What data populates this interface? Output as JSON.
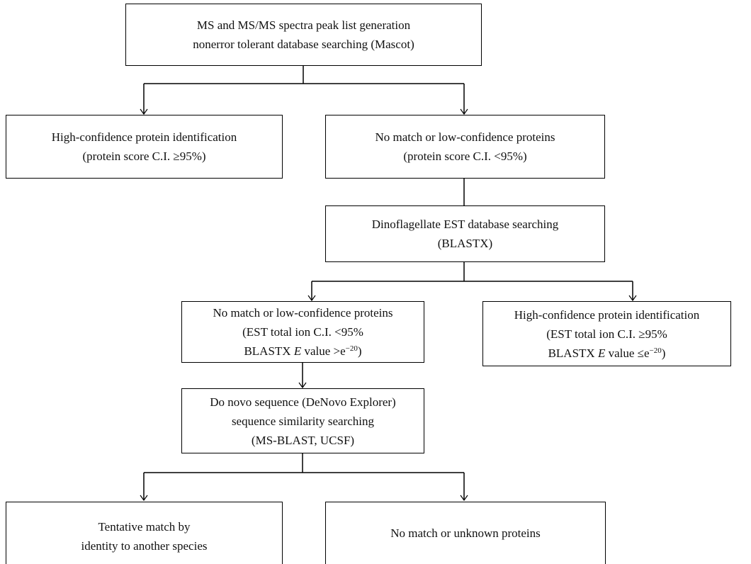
{
  "nodes": [
    {
      "lines": [
        "MS and MS/MS spectra peak list generation",
        "nonerror tolerant database searching (Mascot)"
      ]
    },
    {
      "lines": [
        "High-confidence protein identification",
        "(protein score C.I. ≥95%)"
      ]
    },
    {
      "lines": [
        "No match or low-confidence proteins",
        "(protein score C.I. <95%)"
      ]
    },
    {
      "lines": [
        "Dinoflagellate EST database searching",
        "(BLASTX)"
      ]
    },
    {
      "lines": [
        "No match or low-confidence proteins",
        "(EST total ion C.I. <95%",
        [
          "BLASTX ",
          "E",
          " value >e",
          "−20",
          ")"
        ]
      ]
    },
    {
      "lines": [
        "High-confidence protein identification",
        "(EST total ion C.I. ≥95%",
        [
          "BLASTX ",
          "E",
          " value ≤e",
          "−20",
          ")"
        ]
      ]
    },
    {
      "lines": [
        "Do novo sequence (DeNovo Explorer)",
        "sequence similarity searching",
        "(MS-BLAST, UCSF)"
      ]
    },
    {
      "lines": [
        "Tentative match by",
        "identity to another species"
      ]
    },
    {
      "lines": [
        "No match or unknown proteins"
      ]
    }
  ]
}
